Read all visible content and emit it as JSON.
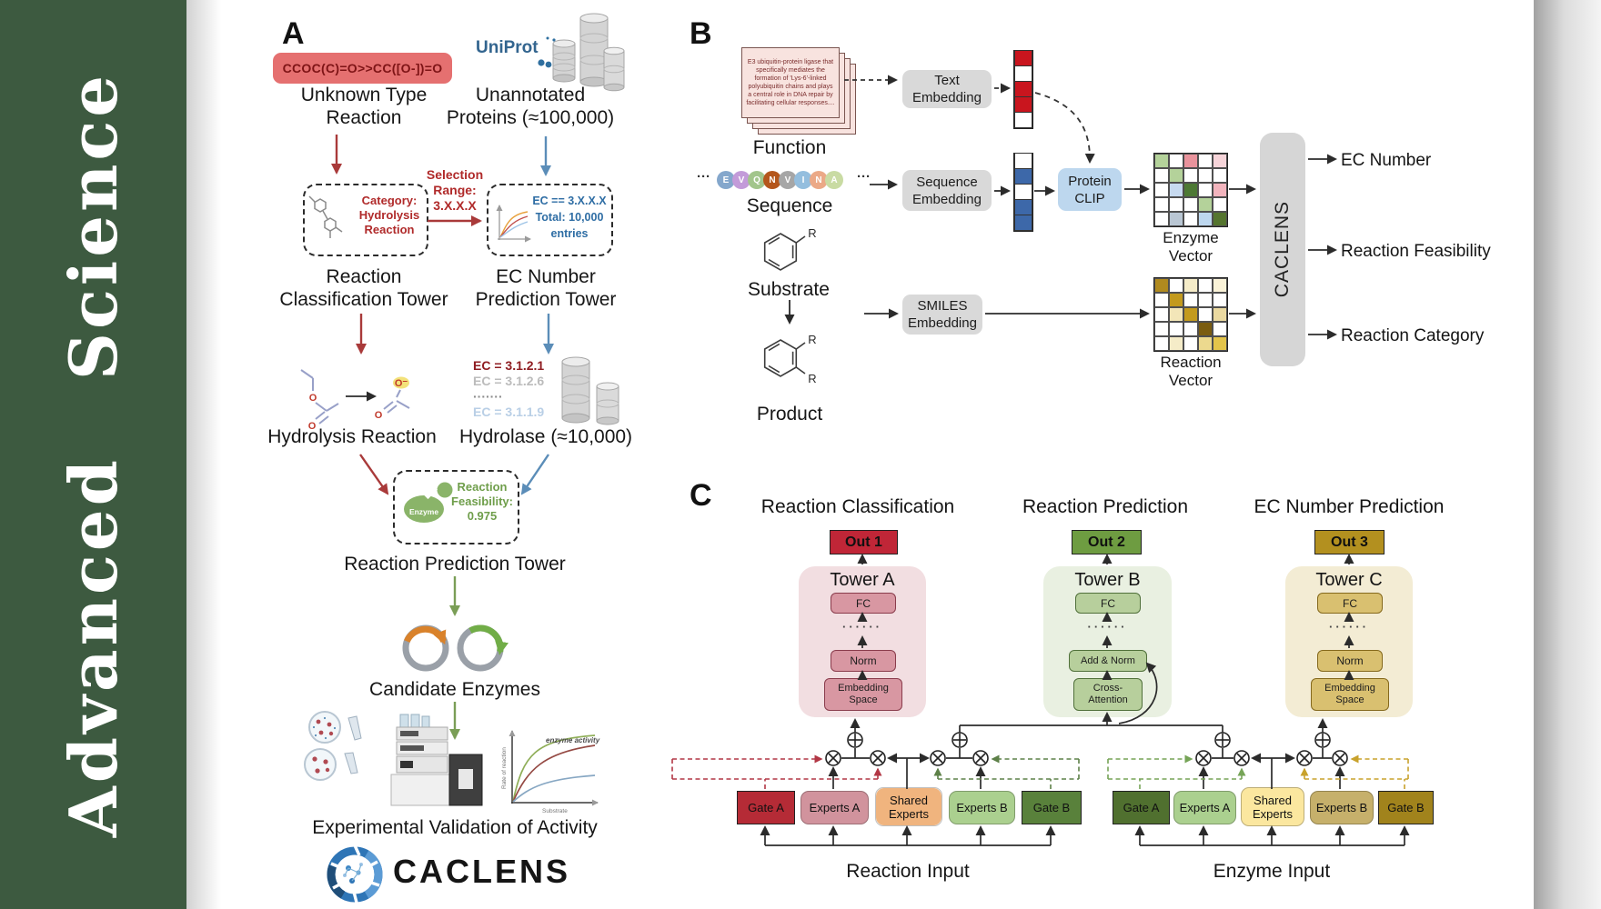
{
  "journal": {
    "name": "Advanced Science"
  },
  "palette": {
    "sidebar_green": "#3d5a40",
    "arrow_red": "#a93a3a",
    "arrow_blue": "#5b8db8",
    "arrow_green": "#7a9e56",
    "tower_a_bg": "#f2dee1",
    "tower_b_bg": "#e9f0e1",
    "tower_c_bg": "#f3ecd4",
    "out1_bg": "#c02637",
    "out2_bg": "#6e9c41",
    "out3_bg": "#b3901f"
  },
  "panelA": {
    "label": "A",
    "smiles_pill": "CCOC(C)=O>>CC([O-])=O",
    "unknown_lines": [
      "Unknown Type",
      "Reaction"
    ],
    "uniprot_wordmark": "UniProt",
    "unannotated_lines": [
      "Unannotated",
      "Proteins (≈100,000)"
    ],
    "category_lines": [
      "Category:",
      "Hydrolysis",
      "Reaction"
    ],
    "selection_lines": [
      "Selection",
      "Range:",
      "3.X.X.X"
    ],
    "ec_filter_lines": [
      "EC == 3.X.X.X",
      "Total: 10,000",
      "entries"
    ],
    "classification_tower_lines": [
      "Reaction",
      "Classification Tower"
    ],
    "ec_tower_lines": [
      "EC Number",
      "Prediction Tower"
    ],
    "hydrolysis_label": "Hydrolysis Reaction",
    "ec_candidates": [
      {
        "text": "EC = 3.1.2.1",
        "color": "#8f1d22",
        "weight": "bold"
      },
      {
        "text": "EC = 3.1.2.6",
        "color": "#bcbcbc",
        "weight": "bold"
      },
      {
        "text": "·······",
        "color": "#8a8a8a",
        "weight": "bold"
      },
      {
        "text": "EC = 3.1.1.9",
        "color": "#b9cfe6",
        "weight": "bold"
      }
    ],
    "hydrolase_label": "Hydrolase (≈10,000)",
    "enzyme_badge": "Enzyme",
    "feasibility_lines": [
      "Reaction",
      "Feasibility:",
      "0.975"
    ],
    "prediction_tower_label": "Reaction Prediction Tower",
    "candidate_label": "Candidate Enzymes",
    "activity_plot": {
      "curve_label": "enzyme activity",
      "ylabel": "Rate of reaction",
      "xlabel": "Substrate"
    },
    "validation_label": "Experimental Validation of Activity",
    "brand_wordmark": "CACLENS"
  },
  "panelB": {
    "label": "B",
    "function_card_text": "E3 ubiquitin-protein ligase that specifically mediates the formation of 'Lys-6'-linked polyubiquitin chains and plays a central role in DNA repair by facilitating cellular responses....",
    "function_label": "Function",
    "ellipsis": "···",
    "residues": [
      {
        "letter": "E",
        "color": "#84a7cc"
      },
      {
        "letter": "V",
        "color": "#c39bd9"
      },
      {
        "letter": "Q",
        "color": "#a2c58c"
      },
      {
        "letter": "N",
        "color": "#b4561c"
      },
      {
        "letter": "V",
        "color": "#a6a6a6"
      },
      {
        "letter": "I",
        "color": "#94bede"
      },
      {
        "letter": "N",
        "color": "#eba987"
      },
      {
        "letter": "A",
        "color": "#c9dba3"
      }
    ],
    "sequence_label": "Sequence",
    "substrate_label": "Substrate",
    "product_label": "Product",
    "r_group": "R",
    "text_embedding_lines": [
      "Text",
      "Embedding"
    ],
    "sequence_embedding_lines": [
      "Sequence",
      "Embedding"
    ],
    "smiles_embedding_lines": [
      "SMILES",
      "Embedding"
    ],
    "protein_clip_lines": [
      "Protein",
      "CLIP"
    ],
    "text_vector_cells": [
      "#c9151e",
      "#ffffff",
      "#c9151e",
      "#c9151e",
      "#ffffff"
    ],
    "sequence_vector_cells": [
      "#ffffff",
      "#3d68a9",
      "#ffffff",
      "#3d68a9",
      "#3d68a9"
    ],
    "enzyme_vector_label": "Enzyme Vector",
    "enzyme_vector_cells": [
      [
        "#b4d29a",
        "#ffffff",
        "#e9939c",
        "#ffffff",
        "#f6d4d9"
      ],
      [
        "#ffffff",
        "#b4d29a",
        "#ffffff",
        "#ffffff",
        "#ffffff"
      ],
      [
        "#ffffff",
        "#c7daf0",
        "#4d7934",
        "#ffffff",
        "#f2b4bd"
      ],
      [
        "#ffffff",
        "#ffffff",
        "#ffffff",
        "#b4d29a",
        "#ffffff"
      ],
      [
        "#ffffff",
        "#b9c6d3",
        "#ffffff",
        "#bdd7ee",
        "#55752f"
      ]
    ],
    "reaction_vector_label": "Reaction Vector",
    "reaction_vector_cells": [
      [
        "#b08a1e",
        "#ffffff",
        "#f5ecc8",
        "#ffffff",
        "#faf3d8"
      ],
      [
        "#ffffff",
        "#c39a1d",
        "#ffffff",
        "#ffffff",
        "#ffffff"
      ],
      [
        "#ffffff",
        "#f3e6b8",
        "#c39a1d",
        "#ffffff",
        "#ead9a0"
      ],
      [
        "#ffffff",
        "#ffffff",
        "#ffffff",
        "#7a5c10",
        "#ffffff"
      ],
      [
        "#ffffff",
        "#f5ecc8",
        "#ffffff",
        "#ecd98e",
        "#e3c44a"
      ]
    ],
    "caclens_bar": "CACLENS",
    "outputs": [
      "EC Number",
      "Reaction Feasibility",
      "Reaction Category"
    ]
  },
  "panelC": {
    "label": "C",
    "column_titles": [
      "Reaction Classification",
      "Reaction Prediction",
      "EC Number Prediction"
    ],
    "outs": [
      "Out 1",
      "Out 2",
      "Out 3"
    ],
    "dots": "······",
    "towers": {
      "a": {
        "name": "Tower A",
        "fc": "FC",
        "norm": "Norm",
        "embed_lines": [
          "Embedding",
          "Space"
        ]
      },
      "b": {
        "name": "Tower B",
        "fc": "FC",
        "addnorm": "Add & Norm",
        "cross_lines": [
          "Cross-",
          "Attention"
        ]
      },
      "c": {
        "name": "Tower C",
        "fc": "FC",
        "norm": "Norm",
        "embed_lines": [
          "Embedding",
          "Space"
        ]
      }
    },
    "moe_reaction": {
      "boxes": [
        "Gate A",
        "Experts A",
        "Shared Experts",
        "Experts B",
        "Gate B"
      ],
      "input_label": "Reaction Input"
    },
    "moe_enzyme": {
      "boxes": [
        "Gate A",
        "Experts A",
        "Shared Experts",
        "Experts B",
        "Gate B"
      ],
      "input_label": "Enzyme Input"
    }
  }
}
